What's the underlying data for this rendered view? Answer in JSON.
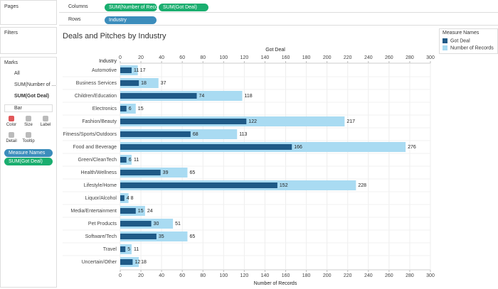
{
  "ui": {
    "pages": "Pages",
    "columns": {
      "label": "Columns",
      "pills": [
        "SUM(Number of Reco",
        "SUM(Got Deal)"
      ]
    },
    "rows": {
      "label": "Rows",
      "pills": [
        "Industry"
      ]
    },
    "filters": "Filters",
    "marks": {
      "title": "Marks",
      "cards": [
        "All",
        "SUM(Number of ...",
        "SUM(Got Deal)"
      ],
      "mark_type": "Bar",
      "buttons": [
        "Color",
        "Size",
        "Label",
        "Detail",
        "Tooltip"
      ],
      "pills": [
        "Measure Names",
        "SUM(Got Deal)"
      ]
    },
    "legend_title": "Measure Names"
  },
  "chart_data": {
    "type": "bar",
    "orientation": "horizontal",
    "title": "Deals and Pitches by Industry",
    "y_label": "Industry",
    "x_label": "Number of Records",
    "x2_label": "Got Deal",
    "categories": [
      "Automotive",
      "Business Services",
      "Children/Education",
      "Electronics",
      "Fashion/Beauty",
      "Fitness/Sports/Outdoors",
      "Food and Beverage",
      "Green/CleanTech",
      "Health/Wellness",
      "Lifestyle/Home",
      "Liquor/Alcohol",
      "Media/Entertainment",
      "Pet Products",
      "Software/Tech",
      "Travel",
      "Uncertain/Other"
    ],
    "series": [
      {
        "name": "Got Deal",
        "color": "#1f5a87",
        "axis": "x2",
        "values": [
          11,
          18,
          74,
          6,
          122,
          68,
          166,
          6,
          39,
          152,
          4,
          15,
          30,
          35,
          5,
          12
        ]
      },
      {
        "name": "Number of Records",
        "color": "#a9dbf2",
        "values": [
          17,
          37,
          118,
          15,
          217,
          113,
          276,
          11,
          65,
          228,
          8,
          24,
          51,
          65,
          11,
          18
        ]
      }
    ],
    "xlim": [
      0,
      300
    ],
    "xticks": [
      0,
      20,
      40,
      60,
      80,
      100,
      120,
      140,
      160,
      180,
      200,
      220,
      240,
      260,
      280,
      300
    ],
    "x2lim": [
      0,
      300
    ],
    "x2ticks": [
      0,
      20,
      40,
      60,
      80,
      100,
      120,
      140,
      160,
      180,
      200,
      220,
      240,
      260,
      280,
      300
    ],
    "grid": true
  }
}
